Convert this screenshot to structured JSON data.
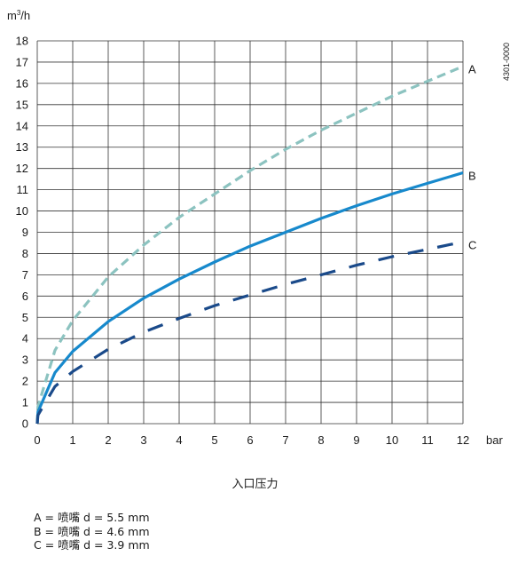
{
  "chart_data": {
    "type": "line",
    "ylabel_base": "m",
    "ylabel_sup": "3",
    "ylabel_rest": "/h",
    "xlabel": "入口压力",
    "x_unit_label": "bar",
    "xlim": [
      0,
      12
    ],
    "ylim": [
      0,
      18
    ],
    "x_ticks": [
      0,
      1,
      2,
      3,
      4,
      5,
      6,
      7,
      8,
      9,
      10,
      11,
      12
    ],
    "y_ticks": [
      0,
      1,
      2,
      3,
      4,
      5,
      6,
      7,
      8,
      9,
      10,
      11,
      12,
      13,
      14,
      15,
      16,
      17,
      18
    ],
    "grid": true,
    "code_label": "4301-0000",
    "series": [
      {
        "name": "A",
        "color": "#8cc3c0",
        "style": "dashed",
        "x": [
          0,
          0.02,
          0.5,
          1,
          2,
          3,
          4,
          5,
          6,
          7,
          8,
          9,
          10,
          11,
          12
        ],
        "y": [
          0,
          0.8,
          3.45,
          4.85,
          6.9,
          8.4,
          9.7,
          10.8,
          11.9,
          12.9,
          13.8,
          14.6,
          15.4,
          16.1,
          16.8
        ]
      },
      {
        "name": "B",
        "color": "#1789cc",
        "style": "solid",
        "x": [
          0,
          0.02,
          0.5,
          1,
          2,
          3,
          4,
          5,
          6,
          7,
          8,
          9,
          10,
          11,
          12
        ],
        "y": [
          0,
          0.55,
          2.4,
          3.4,
          4.8,
          5.9,
          6.8,
          7.6,
          8.35,
          9.0,
          9.65,
          10.25,
          10.8,
          11.3,
          11.8
        ]
      },
      {
        "name": "C",
        "color": "#1a4a8a",
        "style": "dashed-long",
        "x": [
          0,
          0.02,
          0.5,
          1,
          2,
          3,
          4,
          5,
          6,
          7,
          8,
          9,
          10,
          11,
          12
        ],
        "y": [
          0,
          0.4,
          1.75,
          2.45,
          3.5,
          4.3,
          4.95,
          5.55,
          6.05,
          6.55,
          7.0,
          7.45,
          7.85,
          8.2,
          8.55
        ]
      }
    ],
    "legend_lines": [
      "A = 喷嘴 d = 5.5 mm",
      "B = 喷嘴 d = 4.6 mm",
      "C = 喷嘴 d = 3.9 mm"
    ]
  }
}
